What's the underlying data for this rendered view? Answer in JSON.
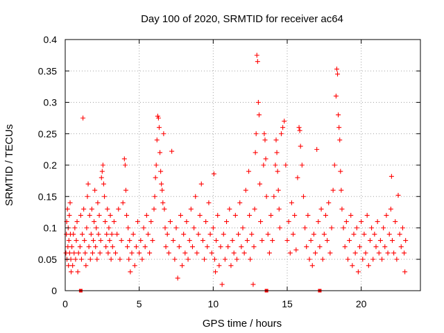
{
  "chart_data": {
    "type": "scatter",
    "title": "Day 100 of 2020, SRMTID for receiver ac64",
    "xlabel": "GPS time / hours",
    "ylabel": "SRMTID / TECUs",
    "xlim": [
      0,
      24
    ],
    "ylim": [
      0,
      0.4
    ],
    "x_ticks": [
      0,
      5,
      10,
      15,
      20
    ],
    "x_tick_labels": [
      "0",
      "5",
      "10",
      "15",
      "20"
    ],
    "y_ticks": [
      0,
      0.05,
      0.1,
      0.15,
      0.2,
      0.25,
      0.3,
      0.35,
      0.4
    ],
    "y_tick_labels": [
      "0",
      "0.05",
      "0.1",
      "0.15",
      "0.2",
      "0.25",
      "0.3",
      "0.35",
      "0.4"
    ],
    "grid": true,
    "marker": "+",
    "color": "#ff0000",
    "series": [
      {
        "name": "SRMTID",
        "points": [
          [
            0.05,
            0.06
          ],
          [
            0.08,
            0.09
          ],
          [
            0.1,
            0.11
          ],
          [
            0.12,
            0.05
          ],
          [
            0.15,
            0.13
          ],
          [
            0.18,
            0.07
          ],
          [
            0.2,
            0.1
          ],
          [
            0.22,
            0.04
          ],
          [
            0.25,
            0.08
          ],
          [
            0.28,
            0.12
          ],
          [
            0.3,
            0.06
          ],
          [
            0.33,
            0.14
          ],
          [
            0.35,
            0.09
          ],
          [
            0.38,
            0.05
          ],
          [
            0.4,
            0.03
          ],
          [
            0.45,
            0.07
          ],
          [
            0.5,
            0.04
          ],
          [
            0.55,
            0.09
          ],
          [
            0.6,
            0.06
          ],
          [
            0.65,
            0.1
          ],
          [
            0.7,
            0.05
          ],
          [
            0.75,
            0.08
          ],
          [
            0.8,
            0.11
          ],
          [
            0.85,
            0.03
          ],
          [
            0.9,
            0.06
          ],
          [
            1.0,
            0.07
          ],
          [
            1.05,
            0.12
          ],
          [
            1.1,
            0.05
          ],
          [
            1.15,
            0.09
          ],
          [
            1.2,
            0.275
          ],
          [
            1.25,
            0.13
          ],
          [
            1.3,
            0.08
          ],
          [
            1.35,
            0.06
          ],
          [
            1.4,
            0.04
          ],
          [
            1.45,
            0.1
          ],
          [
            1.5,
            0.15
          ],
          [
            1.55,
            0.17
          ],
          [
            1.6,
            0.07
          ],
          [
            1.65,
            0.12
          ],
          [
            1.7,
            0.05
          ],
          [
            1.75,
            0.09
          ],
          [
            1.8,
            0.13
          ],
          [
            1.85,
            0.06
          ],
          [
            1.9,
            0.08
          ],
          [
            1.95,
            0.11
          ],
          [
            2.0,
            0.16
          ],
          [
            2.05,
            0.07
          ],
          [
            2.1,
            0.1
          ],
          [
            2.15,
            0.05
          ],
          [
            2.2,
            0.14
          ],
          [
            2.25,
            0.09
          ],
          [
            2.3,
            0.12
          ],
          [
            2.35,
            0.06
          ],
          [
            2.4,
            0.08
          ],
          [
            2.45,
            0.18
          ],
          [
            2.5,
            0.19
          ],
          [
            2.55,
            0.2
          ],
          [
            2.6,
            0.17
          ],
          [
            2.65,
            0.15
          ],
          [
            2.7,
            0.11
          ],
          [
            2.75,
            0.07
          ],
          [
            2.8,
            0.09
          ],
          [
            2.85,
            0.13
          ],
          [
            2.9,
            0.06
          ],
          [
            2.95,
            0.1
          ],
          [
            3.0,
            0.08
          ],
          [
            3.05,
            0.12
          ],
          [
            3.1,
            0.05
          ],
          [
            3.15,
            0.09
          ],
          [
            3.2,
            0.07
          ],
          [
            3.3,
            0.11
          ],
          [
            3.4,
            0.06
          ],
          [
            3.5,
            0.09
          ],
          [
            3.6,
            0.13
          ],
          [
            3.7,
            0.05
          ],
          [
            3.8,
            0.08
          ],
          [
            3.9,
            0.14
          ],
          [
            4.0,
            0.21
          ],
          [
            4.05,
            0.2
          ],
          [
            4.1,
            0.16
          ],
          [
            4.15,
            0.12
          ],
          [
            4.2,
            0.07
          ],
          [
            4.25,
            0.1
          ],
          [
            4.3,
            0.05
          ],
          [
            4.35,
            0.08
          ],
          [
            4.4,
            0.03
          ],
          [
            4.5,
            0.06
          ],
          [
            4.6,
            0.09
          ],
          [
            4.7,
            0.04
          ],
          [
            4.8,
            0.07
          ],
          [
            4.9,
            0.11
          ],
          [
            5.0,
            0.06
          ],
          [
            5.1,
            0.08
          ],
          [
            5.2,
            0.05
          ],
          [
            5.3,
            0.1
          ],
          [
            5.4,
            0.07
          ],
          [
            5.5,
            0.12
          ],
          [
            5.6,
            0.09
          ],
          [
            5.7,
            0.06
          ],
          [
            5.8,
            0.11
          ],
          [
            5.9,
            0.08
          ],
          [
            6.0,
            0.13
          ],
          [
            6.05,
            0.15
          ],
          [
            6.1,
            0.18
          ],
          [
            6.15,
            0.2
          ],
          [
            6.2,
            0.24
          ],
          [
            6.25,
            0.278
          ],
          [
            6.3,
            0.275
          ],
          [
            6.35,
            0.26
          ],
          [
            6.4,
            0.22
          ],
          [
            6.45,
            0.19
          ],
          [
            6.5,
            0.17
          ],
          [
            6.55,
            0.16
          ],
          [
            6.6,
            0.14
          ],
          [
            6.65,
            0.25
          ],
          [
            6.7,
            0.13
          ],
          [
            6.75,
            0.1
          ],
          [
            6.8,
            0.07
          ],
          [
            6.9,
            0.09
          ],
          [
            7.0,
            0.06
          ],
          [
            7.1,
            0.11
          ],
          [
            7.2,
            0.222
          ],
          [
            7.3,
            0.08
          ],
          [
            7.4,
            0.05
          ],
          [
            7.5,
            0.1
          ],
          [
            7.6,
            0.02
          ],
          [
            7.7,
            0.07
          ],
          [
            7.8,
            0.12
          ],
          [
            7.9,
            0.04
          ],
          [
            8.0,
            0.09
          ],
          [
            8.1,
            0.06
          ],
          [
            8.2,
            0.11
          ],
          [
            8.3,
            0.05
          ],
          [
            8.4,
            0.08
          ],
          [
            8.5,
            0.13
          ],
          [
            8.6,
            0.07
          ],
          [
            8.7,
            0.1
          ],
          [
            8.8,
            0.15
          ],
          [
            8.9,
            0.06
          ],
          [
            9.0,
            0.09
          ],
          [
            9.1,
            0.12
          ],
          [
            9.2,
            0.17
          ],
          [
            9.3,
            0.08
          ],
          [
            9.4,
            0.05
          ],
          [
            9.5,
            0.11
          ],
          [
            9.6,
            0.07
          ],
          [
            9.7,
            0.14
          ],
          [
            9.8,
            0.09
          ],
          [
            9.9,
            0.06
          ],
          [
            10.0,
            0.1
          ],
          [
            10.05,
            0.186
          ],
          [
            10.1,
            0.05
          ],
          [
            10.15,
            0.03
          ],
          [
            10.2,
            0.08
          ],
          [
            10.3,
            0.12
          ],
          [
            10.4,
            0.04
          ],
          [
            10.5,
            0.07
          ],
          [
            10.6,
            0.01
          ],
          [
            10.7,
            0.09
          ],
          [
            10.8,
            0.05
          ],
          [
            10.9,
            0.11
          ],
          [
            11.0,
            0.07
          ],
          [
            11.1,
            0.13
          ],
          [
            11.2,
            0.04
          ],
          [
            11.3,
            0.08
          ],
          [
            11.4,
            0.06
          ],
          [
            11.5,
            0.12
          ],
          [
            11.6,
            0.05
          ],
          [
            11.7,
            0.09
          ],
          [
            11.8,
            0.14
          ],
          [
            11.9,
            0.07
          ],
          [
            12.0,
            0.1
          ],
          [
            12.1,
            0.06
          ],
          [
            12.2,
            0.16
          ],
          [
            12.3,
            0.08
          ],
          [
            12.4,
            0.19
          ],
          [
            12.45,
            0.12
          ],
          [
            12.5,
            0.05
          ],
          [
            12.6,
            0.09
          ],
          [
            12.7,
            0.01
          ],
          [
            12.75,
            0.07
          ],
          [
            12.8,
            0.13
          ],
          [
            12.85,
            0.22
          ],
          [
            12.9,
            0.25
          ],
          [
            12.95,
            0.375
          ],
          [
            13.0,
            0.365
          ],
          [
            13.05,
            0.3
          ],
          [
            13.1,
            0.28
          ],
          [
            13.15,
            0.17
          ],
          [
            13.2,
            0.11
          ],
          [
            13.3,
            0.08
          ],
          [
            13.4,
            0.2
          ],
          [
            13.45,
            0.25
          ],
          [
            13.5,
            0.24
          ],
          [
            13.55,
            0.21
          ],
          [
            13.6,
            0.15
          ],
          [
            13.7,
            0.09
          ],
          [
            13.8,
            0.06
          ],
          [
            13.9,
            0.12
          ],
          [
            14.0,
            0.08
          ],
          [
            14.1,
            0.15
          ],
          [
            14.2,
            0.2
          ],
          [
            14.25,
            0.24
          ],
          [
            14.3,
            0.22
          ],
          [
            14.35,
            0.19
          ],
          [
            14.4,
            0.16
          ],
          [
            14.45,
            0.13
          ],
          [
            14.5,
            0.1
          ],
          [
            14.6,
            0.25
          ],
          [
            14.7,
            0.26
          ],
          [
            14.8,
            0.27
          ],
          [
            14.9,
            0.2
          ],
          [
            15.0,
            0.08
          ],
          [
            15.1,
            0.11
          ],
          [
            15.2,
            0.06
          ],
          [
            15.3,
            0.14
          ],
          [
            15.4,
            0.09
          ],
          [
            15.5,
            0.12
          ],
          [
            15.6,
            0.065
          ],
          [
            15.7,
            0.18
          ],
          [
            15.8,
            0.26
          ],
          [
            15.85,
            0.255
          ],
          [
            15.9,
            0.23
          ],
          [
            16.0,
            0.2
          ],
          [
            16.1,
            0.15
          ],
          [
            16.2,
            0.1
          ],
          [
            16.3,
            0.07
          ],
          [
            16.4,
            0.12
          ],
          [
            16.5,
            0.05
          ],
          [
            16.6,
            0.08
          ],
          [
            16.7,
            0.04
          ],
          [
            16.8,
            0.09
          ],
          [
            16.9,
            0.06
          ],
          [
            17.0,
            0.225
          ],
          [
            17.1,
            0.11
          ],
          [
            17.2,
            0.07
          ],
          [
            17.3,
            0.13
          ],
          [
            17.4,
            0.05
          ],
          [
            17.5,
            0.09
          ],
          [
            17.6,
            0.12
          ],
          [
            17.7,
            0.08
          ],
          [
            17.8,
            0.14
          ],
          [
            17.9,
            0.06
          ],
          [
            18.0,
            0.1
          ],
          [
            18.1,
            0.16
          ],
          [
            18.2,
            0.2
          ],
          [
            18.3,
            0.31
          ],
          [
            18.35,
            0.353
          ],
          [
            18.4,
            0.345
          ],
          [
            18.45,
            0.28
          ],
          [
            18.5,
            0.26
          ],
          [
            18.55,
            0.24
          ],
          [
            18.6,
            0.19
          ],
          [
            18.65,
            0.16
          ],
          [
            18.7,
            0.13
          ],
          [
            18.8,
            0.1
          ],
          [
            18.9,
            0.07
          ],
          [
            19.0,
            0.11
          ],
          [
            19.1,
            0.05
          ],
          [
            19.2,
            0.08
          ],
          [
            19.3,
            0.12
          ],
          [
            19.4,
            0.04
          ],
          [
            19.5,
            0.09
          ],
          [
            19.6,
            0.06
          ],
          [
            19.7,
            0.1
          ],
          [
            19.8,
            0.03
          ],
          [
            19.9,
            0.07
          ],
          [
            20.0,
            0.11
          ],
          [
            20.1,
            0.05
          ],
          [
            20.2,
            0.09
          ],
          [
            20.3,
            0.06
          ],
          [
            20.4,
            0.12
          ],
          [
            20.5,
            0.04
          ],
          [
            20.6,
            0.08
          ],
          [
            20.7,
            0.1
          ],
          [
            20.8,
            0.05
          ],
          [
            20.9,
            0.09
          ],
          [
            21.0,
            0.07
          ],
          [
            21.1,
            0.11
          ],
          [
            21.2,
            0.06
          ],
          [
            21.3,
            0.08
          ],
          [
            21.4,
            0.05
          ],
          [
            21.5,
            0.1
          ],
          [
            21.6,
            0.07
          ],
          [
            21.7,
            0.12
          ],
          [
            21.8,
            0.06
          ],
          [
            21.9,
            0.09
          ],
          [
            22.0,
            0.13
          ],
          [
            22.05,
            0.182
          ],
          [
            22.1,
            0.08
          ],
          [
            22.2,
            0.06
          ],
          [
            22.3,
            0.11
          ],
          [
            22.4,
            0.05
          ],
          [
            22.5,
            0.152
          ],
          [
            22.6,
            0.09
          ],
          [
            22.7,
            0.07
          ],
          [
            22.8,
            0.1
          ],
          [
            22.9,
            0.06
          ],
          [
            22.95,
            0.03
          ],
          [
            23.0,
            0.08
          ]
        ]
      }
    ],
    "x_markers": [
      1.05,
      13.6,
      17.2
    ]
  }
}
